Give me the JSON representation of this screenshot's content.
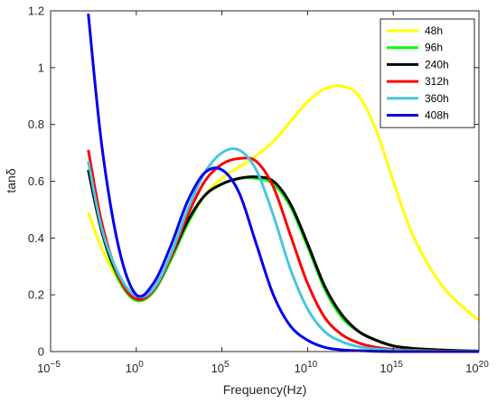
{
  "chart_data": {
    "type": "line",
    "title": "",
    "xlabel": "Frequency(Hz)",
    "ylabel": "tanδ",
    "x_scale": "log",
    "xlim_exponent": [
      -5,
      20
    ],
    "ylim": [
      0,
      1.2
    ],
    "x_ticks": [
      {
        "base": "10",
        "exp": "−5"
      },
      {
        "base": "10",
        "exp": "0"
      },
      {
        "base": "10",
        "exp": "5"
      },
      {
        "base": "10",
        "exp": "10"
      },
      {
        "base": "10",
        "exp": "15"
      },
      {
        "base": "10",
        "exp": "20"
      }
    ],
    "y_ticks": [
      "0",
      "0.2",
      "0.4",
      "0.6",
      "0.8",
      "1",
      "1.2"
    ],
    "grid": false,
    "legend_position": "top-right",
    "series": [
      {
        "name": "48h",
        "color": "#ffff00",
        "log10_frequency": [
          -2.8,
          -2,
          -1,
          0,
          1,
          2,
          3,
          4,
          5,
          6,
          7,
          8,
          9,
          10,
          11,
          12,
          13,
          14,
          15,
          16,
          17,
          18,
          19,
          20
        ],
        "values": [
          0.49,
          0.36,
          0.25,
          0.19,
          0.22,
          0.33,
          0.45,
          0.55,
          0.61,
          0.65,
          0.69,
          0.74,
          0.81,
          0.88,
          0.925,
          0.935,
          0.9,
          0.78,
          0.6,
          0.43,
          0.31,
          0.22,
          0.16,
          0.11
        ]
      },
      {
        "name": "96h",
        "color": "#00ff00",
        "log10_frequency": [
          -2.8,
          -2,
          -1,
          0,
          1,
          2,
          3,
          4,
          5,
          6,
          7,
          8,
          9,
          10,
          11,
          12,
          13,
          14,
          15,
          16,
          17,
          18,
          19,
          20
        ],
        "values": [
          0.67,
          0.42,
          0.25,
          0.18,
          0.21,
          0.32,
          0.45,
          0.55,
          0.59,
          0.61,
          0.61,
          0.59,
          0.51,
          0.37,
          0.22,
          0.12,
          0.07,
          0.04,
          0.02,
          0.012,
          0.008,
          0.005,
          0.003,
          0.002
        ]
      },
      {
        "name": "240h",
        "color": "#000000",
        "log10_frequency": [
          -2.8,
          -2,
          -1,
          0,
          1,
          2,
          3,
          4,
          5,
          6,
          7,
          8,
          9,
          10,
          11,
          12,
          13,
          14,
          15,
          16,
          17,
          18,
          19,
          20
        ],
        "values": [
          0.64,
          0.42,
          0.26,
          0.19,
          0.22,
          0.33,
          0.46,
          0.55,
          0.59,
          0.61,
          0.615,
          0.6,
          0.52,
          0.38,
          0.23,
          0.13,
          0.07,
          0.04,
          0.02,
          0.012,
          0.008,
          0.005,
          0.003,
          0.002
        ]
      },
      {
        "name": "312h",
        "color": "#ff0000",
        "log10_frequency": [
          -2.8,
          -2,
          -1,
          0,
          1,
          2,
          3,
          4,
          5,
          6,
          7,
          8,
          9,
          10,
          11,
          12,
          13,
          14,
          15,
          16,
          17,
          18,
          19,
          20
        ],
        "values": [
          0.71,
          0.45,
          0.26,
          0.185,
          0.215,
          0.33,
          0.48,
          0.6,
          0.66,
          0.68,
          0.67,
          0.58,
          0.41,
          0.24,
          0.12,
          0.06,
          0.03,
          0.015,
          0.008,
          0.005,
          0.003,
          0.002,
          0.001,
          0.001
        ]
      },
      {
        "name": "360h",
        "color": "#47c6e0",
        "log10_frequency": [
          -2.8,
          -2,
          -1,
          0,
          1,
          2,
          3,
          4,
          5,
          6,
          7,
          8,
          9,
          10,
          11,
          12,
          13,
          14,
          15,
          16,
          17,
          18,
          19,
          20
        ],
        "values": [
          0.67,
          0.43,
          0.27,
          0.195,
          0.22,
          0.34,
          0.5,
          0.63,
          0.7,
          0.71,
          0.64,
          0.48,
          0.29,
          0.15,
          0.07,
          0.035,
          0.017,
          0.009,
          0.005,
          0.003,
          0.002,
          0.001,
          0.001,
          0.001
        ]
      },
      {
        "name": "408h",
        "color": "#0000ee",
        "log10_frequency": [
          -2.8,
          -2,
          -1,
          0,
          1,
          2,
          3,
          4,
          5,
          6,
          7,
          8,
          9,
          10,
          11,
          12,
          13,
          14,
          15,
          16,
          17,
          18,
          19,
          20
        ],
        "values": [
          1.19,
          0.72,
          0.36,
          0.2,
          0.24,
          0.37,
          0.53,
          0.63,
          0.64,
          0.56,
          0.38,
          0.2,
          0.09,
          0.04,
          0.015,
          0.006,
          0.003,
          0.001,
          0.0,
          0.0,
          0.0,
          0.0,
          0.0,
          0.0
        ]
      }
    ]
  }
}
